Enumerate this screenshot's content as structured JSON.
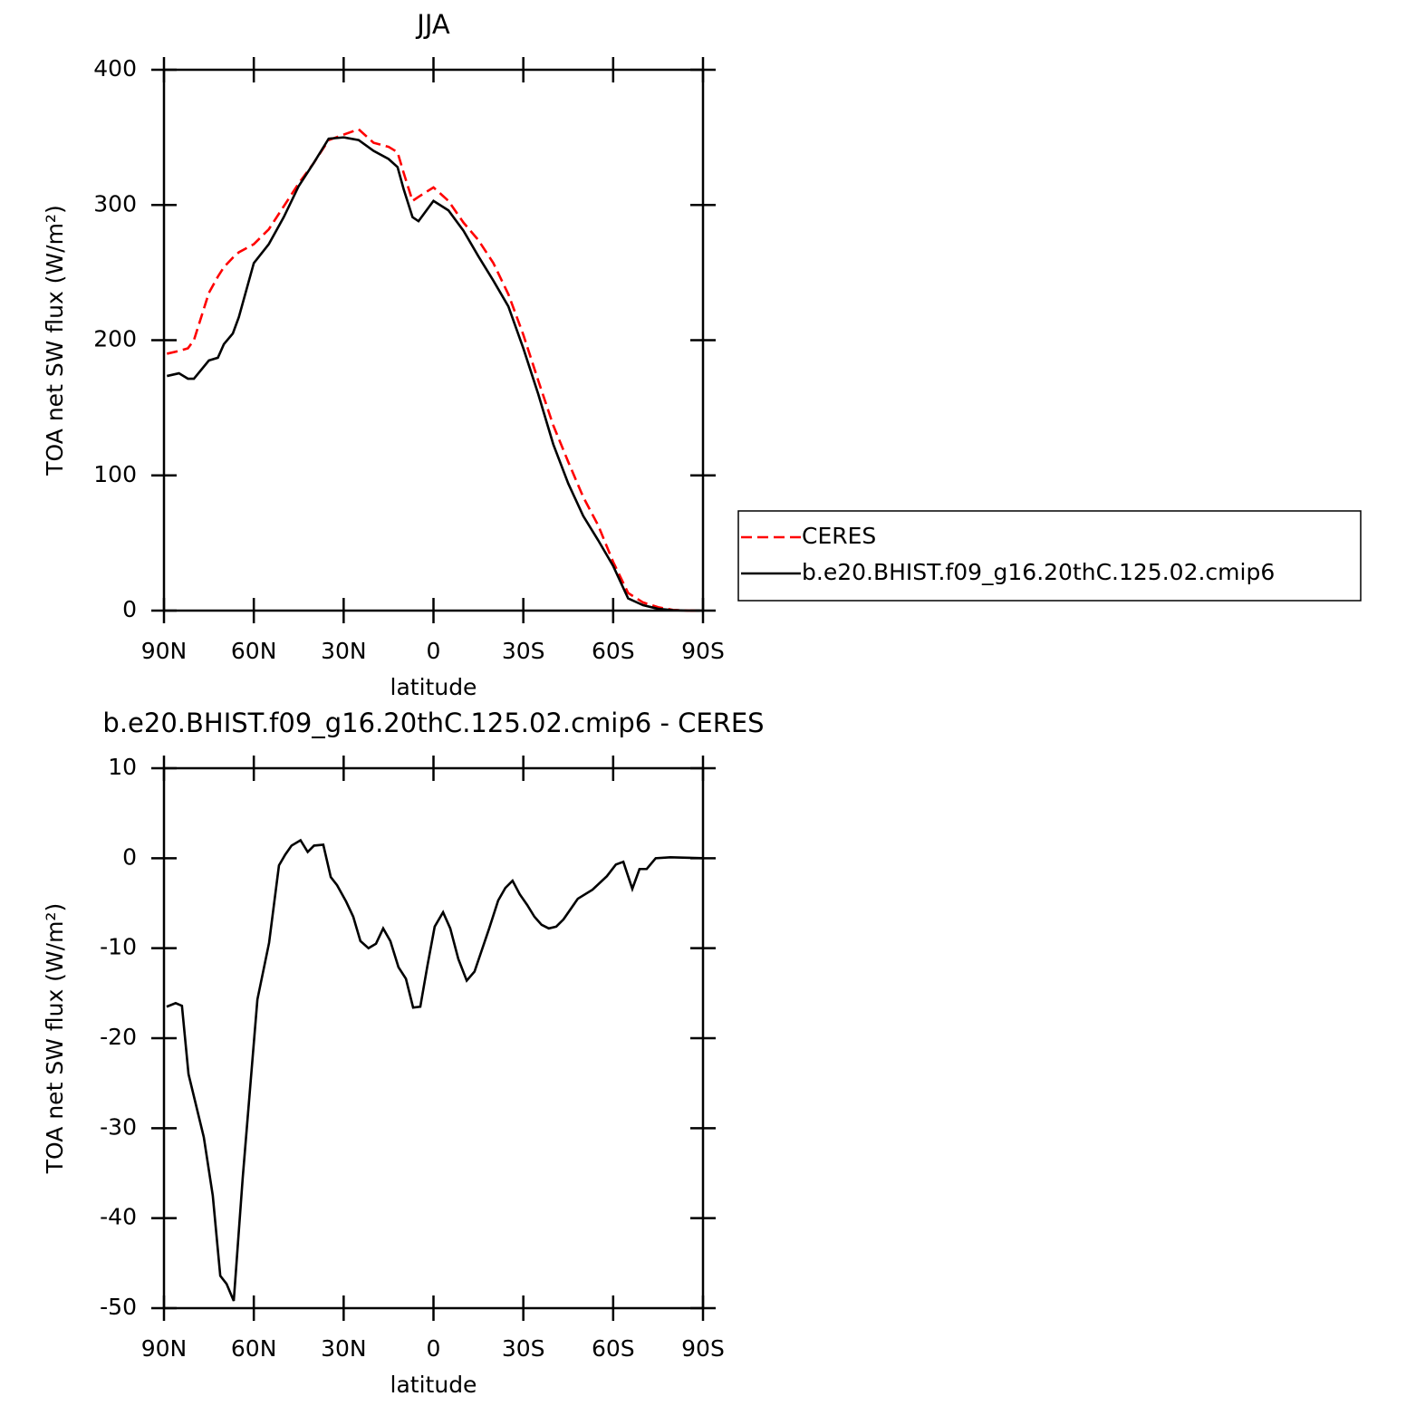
{
  "chart_data": [
    {
      "type": "line",
      "title": "JJA",
      "xlabel": "latitude",
      "ylabel": "TOA net SW flux (W/m²)",
      "xlim": [
        90,
        -90
      ],
      "xticks": [
        {
          "value": 90,
          "label": "90N"
        },
        {
          "value": 60,
          "label": "60N"
        },
        {
          "value": 30,
          "label": "30N"
        },
        0,
        {
          "value": -30,
          "label": "30S"
        },
        {
          "value": -60,
          "label": "60S"
        },
        {
          "value": -90,
          "label": "90S"
        }
      ],
      "ylim": [
        0,
        400
      ],
      "yticks": [
        0,
        100,
        200,
        300,
        400
      ],
      "legend": "right",
      "x": [
        89,
        85,
        82,
        80,
        75,
        72,
        70,
        67,
        65,
        60,
        55,
        50,
        45,
        40,
        35,
        30,
        25,
        20,
        15,
        12,
        10,
        7,
        5,
        0,
        -5,
        -10,
        -15,
        -20,
        -25,
        -30,
        -35,
        -40,
        -45,
        -50,
        -55,
        -60,
        -65,
        -70,
        -75,
        -80,
        -85,
        -89
      ],
      "series": [
        {
          "name": "CERES",
          "color": "#ff0000",
          "dash": "dashed",
          "values": [
            190,
            192,
            194,
            200,
            235,
            247,
            254,
            261,
            265,
            271,
            282,
            299,
            316,
            331,
            348,
            352,
            356,
            346,
            343,
            339,
            324,
            303,
            306,
            313,
            303,
            287,
            274,
            257,
            234,
            204,
            170,
            137,
            110,
            84,
            63,
            36,
            13,
            6,
            2.5,
            0.5,
            0,
            0
          ]
        },
        {
          "name": "b.e20.BHIST.f09_g16.20thC.125.02.cmip6",
          "color": "#000000",
          "dash": "solid",
          "values": [
            173.5,
            175.5,
            171.5,
            171.5,
            185,
            187,
            197,
            205,
            217,
            257,
            271,
            291,
            314,
            331,
            349,
            350,
            348,
            340,
            334,
            328,
            312,
            291,
            288,
            303,
            296,
            281,
            262,
            244,
            225,
            194,
            160,
            123,
            94,
            70,
            52,
            33,
            9,
            4,
            1.3,
            0.3,
            0,
            0
          ]
        }
      ]
    },
    {
      "type": "line",
      "title": "b.e20.BHIST.f09_g16.20thC.125.02.cmip6 - CERES",
      "xlabel": "latitude",
      "ylabel": "TOA net SW flux (W/m²)",
      "xlim": [
        90,
        -90
      ],
      "xticks": [
        {
          "value": 90,
          "label": "90N"
        },
        {
          "value": 60,
          "label": "60N"
        },
        {
          "value": 30,
          "label": "30N"
        },
        0,
        {
          "value": -30,
          "label": "30S"
        },
        {
          "value": -60,
          "label": "60S"
        },
        {
          "value": -90,
          "label": "90S"
        }
      ],
      "ylim": [
        -50,
        10
      ],
      "yticks": [
        -50,
        -40,
        -30,
        -20,
        -10,
        0,
        10
      ],
      "x": [
        89.1,
        86.1,
        84.0,
        81.8,
        76.7,
        73.7,
        71.2,
        69.1,
        66.7,
        63.7,
        58.8,
        54.9,
        51.6,
        49.5,
        47.4,
        44.4,
        42.0,
        39.9,
        36.8,
        34.3,
        32.2,
        29.2,
        26.8,
        24.4,
        21.7,
        19.2,
        16.8,
        14.4,
        11.7,
        9.2,
        6.8,
        4.4,
        2.0,
        -0.4,
        -3.2,
        -5.6,
        -8.3,
        -11.1,
        -13.7,
        -18.6,
        -21.6,
        -24.0,
        -26.4,
        -28.8,
        -31.3,
        -33.7,
        -36.1,
        -38.5,
        -41.0,
        -43.4,
        -48.2,
        -53.1,
        -57.9,
        -60.9,
        -63.4,
        -66.4,
        -68.8,
        -71.2,
        -74.2,
        -79.1,
        -90
      ],
      "series": [
        {
          "color": "#000000",
          "dash": "solid",
          "values": [
            -16.5,
            -16.1,
            -16.4,
            -24,
            -31,
            -37.5,
            -46.4,
            -47.3,
            -49.2,
            -35.5,
            -15.7,
            -9.4,
            -0.8,
            0.4,
            1.4,
            2.0,
            0.7,
            1.4,
            1.5,
            -2.1,
            -3,
            -4.8,
            -6.5,
            -9.2,
            -10,
            -9.5,
            -7.8,
            -9.2,
            -12.1,
            -13.4,
            -16.6,
            -16.5,
            -11.9,
            -7.6,
            -6,
            -7.8,
            -11.2,
            -13.6,
            -12.6,
            -7.8,
            -4.7,
            -3.3,
            -2.5,
            -4,
            -5.2,
            -6.5,
            -7.4,
            -7.8,
            -7.6,
            -6.8,
            -4.5,
            -3.5,
            -2,
            -0.7,
            -0.4,
            -3.4,
            -1.2,
            -1.2,
            0,
            0.1,
            0
          ]
        }
      ]
    }
  ]
}
